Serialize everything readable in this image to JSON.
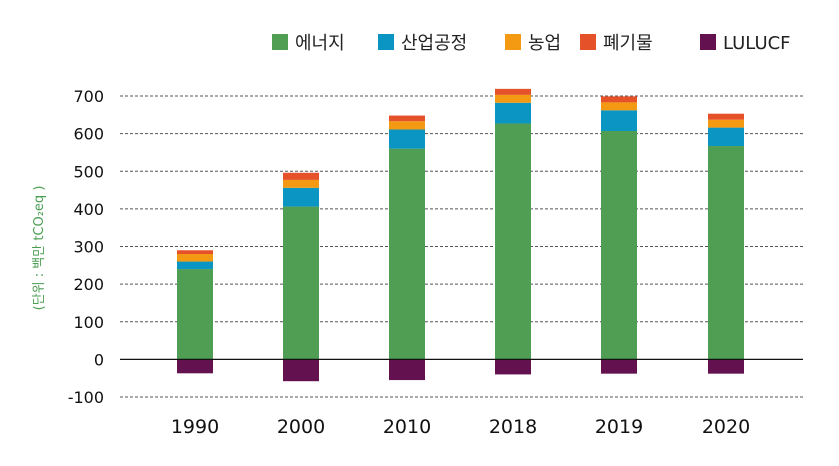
{
  "chart_data": {
    "type": "bar",
    "stacked": true,
    "categories": [
      "1990",
      "2000",
      "2010",
      "2018",
      "2019",
      "2020"
    ],
    "series": [
      {
        "name": "에너지",
        "color": "#4f9e53",
        "values": [
          240,
          406,
          560,
          627,
          607,
          567
        ]
      },
      {
        "name": "산업공정",
        "color": "#0a95c2",
        "values": [
          20,
          50,
          51,
          55,
          55,
          49
        ]
      },
      {
        "name": "농업",
        "color": "#f39a12",
        "values": [
          20,
          21,
          22,
          21,
          21,
          21
        ]
      },
      {
        "name": "폐기물",
        "color": "#e5522a",
        "values": [
          10,
          19,
          15,
          16,
          16,
          16
        ]
      },
      {
        "name": "LULUCF",
        "color": "#64124f",
        "values": [
          -37,
          -58,
          -55,
          -40,
          -38,
          -38
        ]
      }
    ],
    "ylabel": "(단위 : 백만 tCO₂eq )",
    "ylim": [
      -100,
      700
    ],
    "yticks": [
      -100,
      0,
      100,
      200,
      300,
      400,
      500,
      600,
      700
    ],
    "ytick_labels": [
      "-100",
      "0",
      "100",
      "200",
      "300",
      "400",
      "500",
      "600",
      "700"
    ],
    "grid": true,
    "legend_position": "top-right"
  }
}
